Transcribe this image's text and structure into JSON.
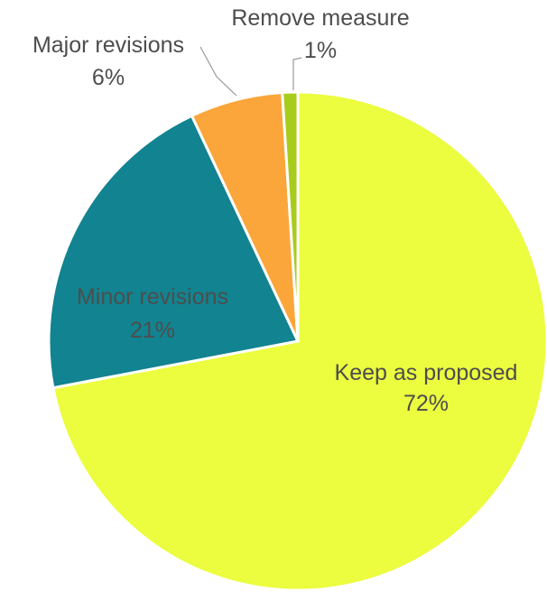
{
  "chart_data": {
    "type": "pie",
    "title": "",
    "slices": [
      {
        "name": "Keep as proposed",
        "value": 72,
        "label": "72%",
        "color": "#ecfc3f"
      },
      {
        "name": "Minor revisions",
        "value": 21,
        "label": "21%",
        "color": "#128390"
      },
      {
        "name": "Major revisions",
        "value": 6,
        "label": "6%",
        "color": "#fba63b"
      },
      {
        "name": "Remove measure",
        "value": 1,
        "label": "1%",
        "color": "#a8cc1c"
      }
    ],
    "start": "12 o'clock",
    "direction": "clockwise",
    "legend": "none (labels on/next to slices)"
  }
}
